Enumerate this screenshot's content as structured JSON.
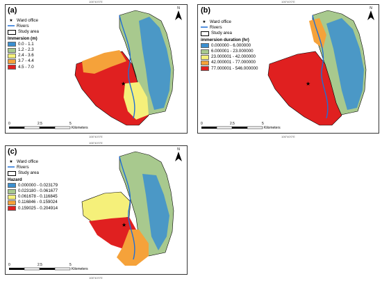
{
  "figure": {
    "panels": [
      {
        "tag": "(a)",
        "legend": {
          "point_label": "Ward office",
          "river_label": "Rivers",
          "area_label": "Study area",
          "title": "Immersion (m)",
          "classes": [
            {
              "label": "0.0 - 1.1",
              "color": "#3b8fd0"
            },
            {
              "label": "1.2 - 2.3",
              "color": "#a8c98e"
            },
            {
              "label": "2.4 - 3.6",
              "color": "#f5f07a"
            },
            {
              "label": "3.7 - 4.4",
              "color": "#f5a23a"
            },
            {
              "label": "4.5 - 7.0",
              "color": "#e02020"
            }
          ]
        },
        "scale": {
          "ticks": [
            "0",
            "2.5",
            "5"
          ],
          "unit": "Kilometers"
        },
        "north_label": "N",
        "coord_label": "106°40'0\"E"
      },
      {
        "tag": "(b)",
        "legend": {
          "point_label": "Ward office",
          "river_label": "Rivers",
          "area_label": "Study area",
          "title": "immersion duration (hr)",
          "classes": [
            {
              "label": "0.000000 - 6.000000",
              "color": "#3b8fd0"
            },
            {
              "label": "6.000001 - 23.000000",
              "color": "#a8c98e"
            },
            {
              "label": "23.000001 - 42.000000",
              "color": "#f5f07a"
            },
            {
              "label": "42.000001 - 77.000000",
              "color": "#f5a23a"
            },
            {
              "label": "77.000001 - 546.000000",
              "color": "#e02020"
            }
          ]
        },
        "scale": {
          "ticks": [
            "0",
            "2.5",
            "5"
          ],
          "unit": "Kilometers"
        },
        "north_label": "N",
        "coord_label": "106°40'0\"E"
      },
      {
        "tag": "(c)",
        "legend": {
          "point_label": "Ward office",
          "river_label": "Rivers",
          "area_label": "Study area",
          "title": "Hazard",
          "classes": [
            {
              "label": "0.000000 - 0.023179",
              "color": "#3b8fd0"
            },
            {
              "label": "0.023180 - 0.061677",
              "color": "#a8c98e"
            },
            {
              "label": "0.061678 - 0.116845",
              "color": "#f5f07a"
            },
            {
              "label": "0.116846 - 0.159024",
              "color": "#f5a23a"
            },
            {
              "label": "0.159025 - 0.204914",
              "color": "#e02020"
            }
          ]
        },
        "scale": {
          "ticks": [
            "0",
            "2.5",
            "5"
          ],
          "unit": "Kilometers"
        },
        "north_label": "N",
        "coord_label": "106°40'0\"E"
      }
    ]
  }
}
